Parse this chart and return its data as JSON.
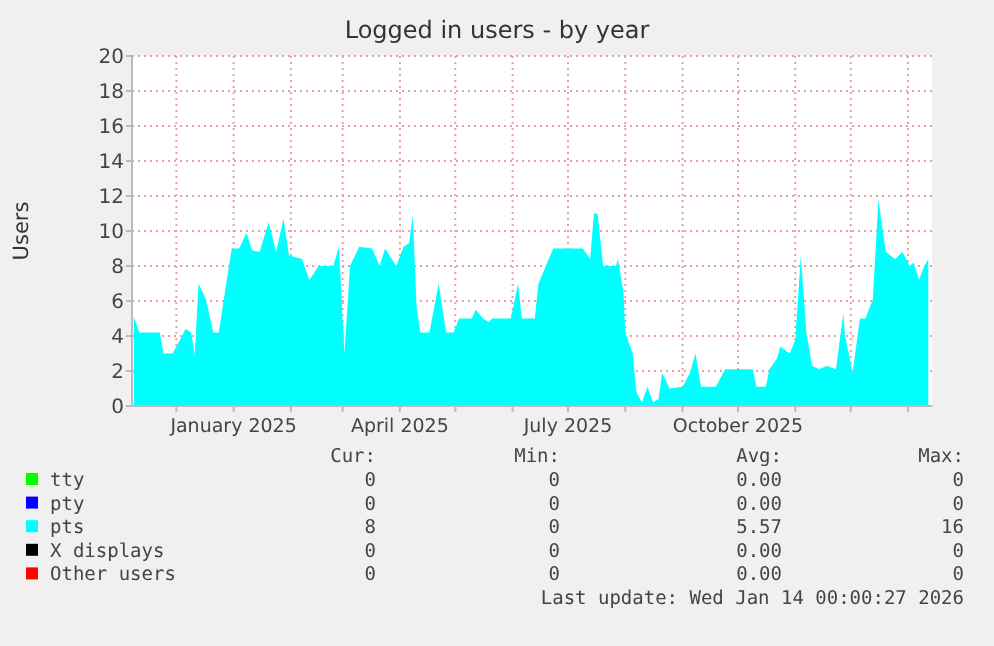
{
  "chart_data": {
    "type": "area",
    "title": "Logged in users - by year",
    "ylabel": "Users",
    "xlim": [
      "2024-11-07",
      "2026-01-14"
    ],
    "xticks": [
      {
        "value": "2024-12-01",
        "label": null
      },
      {
        "value": "2025-01-01",
        "label": "January 2025"
      },
      {
        "value": "2025-02-01",
        "label": null
      },
      {
        "value": "2025-03-01",
        "label": null
      },
      {
        "value": "2025-04-01",
        "label": "April 2025"
      },
      {
        "value": "2025-05-01",
        "label": null
      },
      {
        "value": "2025-06-01",
        "label": null
      },
      {
        "value": "2025-07-01",
        "label": "July 2025"
      },
      {
        "value": "2025-08-01",
        "label": null
      },
      {
        "value": "2025-09-01",
        "label": null
      },
      {
        "value": "2025-10-01",
        "label": "October 2025"
      },
      {
        "value": "2025-11-01",
        "label": null
      },
      {
        "value": "2025-12-01",
        "label": null
      },
      {
        "value": "2026-01-01",
        "label": null
      }
    ],
    "ylim": [
      0,
      20
    ],
    "yticks": [
      0,
      2,
      4,
      6,
      8,
      10,
      12,
      14,
      16,
      18,
      20
    ],
    "grid": true,
    "legend": "bottom",
    "series": [
      {
        "name": "tty",
        "color": "#00ff00"
      },
      {
        "name": "pty",
        "color": "#0000ff"
      },
      {
        "name": "pts",
        "color": "#00ffff",
        "x": [
          "2024-11-08",
          "2024-11-11",
          "2024-11-22",
          "2024-11-24",
          "2024-11-29",
          "2024-12-03",
          "2024-12-06",
          "2024-12-09",
          "2024-12-11",
          "2024-12-13",
          "2024-12-17",
          "2024-12-21",
          "2024-12-24",
          "2024-12-28",
          "2024-12-31",
          "2025-01-04",
          "2025-01-08",
          "2025-01-11",
          "2025-01-15",
          "2025-01-20",
          "2025-01-24",
          "2025-01-28",
          "2025-01-31",
          "2025-02-07",
          "2025-02-11",
          "2025-02-16",
          "2025-02-24",
          "2025-02-27",
          "2025-03-02",
          "2025-03-05",
          "2025-03-10",
          "2025-03-17",
          "2025-03-21",
          "2025-03-24",
          "2025-03-30",
          "2025-04-03",
          "2025-04-06",
          "2025-04-08",
          "2025-04-10",
          "2025-04-12",
          "2025-04-17",
          "2025-04-22",
          "2025-04-26",
          "2025-04-30",
          "2025-05-03",
          "2025-05-10",
          "2025-05-12",
          "2025-05-16",
          "2025-05-19",
          "2025-05-21",
          "2025-05-31",
          "2025-06-04",
          "2025-06-06",
          "2025-06-13",
          "2025-06-15",
          "2025-06-23",
          "2025-07-09",
          "2025-07-13",
          "2025-07-15",
          "2025-07-17",
          "2025-07-20",
          "2025-07-27",
          "2025-07-28",
          "2025-07-31",
          "2025-08-01",
          "2025-08-05",
          "2025-08-07",
          "2025-08-10",
          "2025-08-13",
          "2025-08-16",
          "2025-08-19",
          "2025-08-21",
          "2025-08-25",
          "2025-09-01",
          "2025-09-05",
          "2025-09-08",
          "2025-09-11",
          "2025-09-19",
          "2025-09-21",
          "2025-09-24",
          "2025-10-09",
          "2025-10-11",
          "2025-10-16",
          "2025-10-18",
          "2025-10-22",
          "2025-10-24",
          "2025-10-29",
          "2025-11-01",
          "2025-11-04",
          "2025-11-07",
          "2025-11-09",
          "2025-11-10",
          "2025-11-14",
          "2025-11-18",
          "2025-11-23",
          "2025-11-27",
          "2025-11-28",
          "2025-12-02",
          "2025-12-06",
          "2025-12-09",
          "2025-12-13",
          "2025-12-16",
          "2025-12-20",
          "2025-12-25",
          "2025-12-29",
          "2026-01-02",
          "2026-01-04",
          "2026-01-07",
          "2026-01-09",
          "2026-01-12"
        ],
        "values": [
          5.1,
          4.2,
          4.2,
          3.0,
          3.0,
          3.8,
          4.4,
          4.2,
          2.9,
          7.0,
          6.1,
          4.2,
          4.2,
          7.0,
          9.0,
          9.0,
          9.9,
          8.9,
          8.8,
          10.5,
          8.8,
          10.7,
          8.6,
          8.4,
          7.2,
          8.0,
          8.0,
          9.1,
          3.0,
          8.0,
          9.1,
          9.0,
          8.0,
          9.0,
          8.0,
          9.1,
          9.3,
          10.9,
          5.7,
          4.2,
          4.2,
          7.0,
          4.2,
          4.2,
          5.0,
          5.0,
          5.5,
          5.0,
          4.8,
          5.0,
          5.0,
          7.0,
          5.0,
          5.0,
          7.0,
          9.0,
          9.0,
          8.4,
          11.0,
          11.0,
          8.0,
          8.0,
          8.4,
          6.5,
          4.2,
          3.0,
          0.8,
          0.2,
          1.1,
          0.2,
          0.4,
          1.9,
          1.0,
          1.1,
          1.9,
          3.0,
          1.1,
          1.1,
          1.5,
          2.1,
          2.1,
          1.1,
          1.1,
          2.1,
          2.7,
          3.4,
          3.0,
          3.8,
          8.6,
          4.2,
          3.0,
          2.3,
          2.1,
          2.3,
          2.1,
          5.3,
          4.0,
          1.9,
          5.0,
          5.0,
          6.1,
          11.8,
          8.8,
          8.4,
          8.8,
          8.0,
          8.2,
          7.2,
          7.8,
          8.4
        ]
      },
      {
        "name": "X displays",
        "color": "#000000"
      },
      {
        "name": "Other users",
        "color": "#ff0000"
      }
    ],
    "annotations": [
      "Cur:",
      "Min:",
      "Avg:",
      "Max:",
      "0",
      "0",
      "0.00",
      "0",
      "0",
      "0",
      "0.00",
      "0",
      "8",
      "0",
      "5.57",
      "16",
      "0",
      "0",
      "0.00",
      "0",
      "0",
      "0",
      "0.00",
      "0",
      "Last update: Wed Jan 14 00:00:27 2026"
    ]
  }
}
